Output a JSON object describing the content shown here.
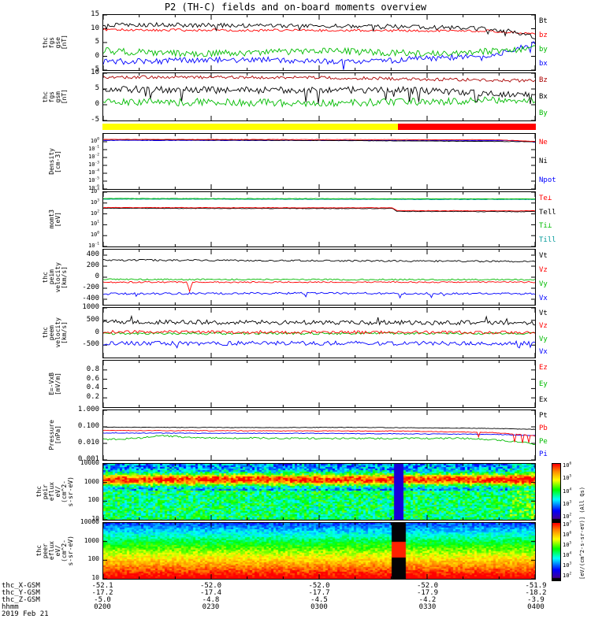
{
  "title": "P2 (TH-C) fields and on-board moments overview",
  "spectro_unit_label": "[eV/(cm^2-s-sr-eV)] (All Qs)",
  "time_axis": {
    "label": "hhmm",
    "date": "2019 Feb 21",
    "ticks": [
      "0200",
      "0230",
      "0300",
      "0330",
      "0400"
    ]
  },
  "position_rows": [
    {
      "label": "thc_X-GSM",
      "values": [
        "-52.1",
        "-52.0",
        "-52.0",
        "-52.0",
        "-51.9"
      ]
    },
    {
      "label": "thc_Y-GSM",
      "values": [
        "-17.2",
        "-17.4",
        "-17.7",
        "-17.9",
        "-18.2"
      ]
    },
    {
      "label": "thc_Z-GSM",
      "values": [
        "-5.0",
        "-4.8",
        "-4.5",
        "-4.2",
        "-3.9"
      ]
    }
  ],
  "quality_bar": {
    "segments": [
      {
        "color": "#ffff00",
        "from": 0,
        "to": 0.682
      },
      {
        "color": "#ff0000",
        "from": 0.682,
        "to": 1
      }
    ]
  },
  "chart_data": [
    {
      "id": "fgs_gse",
      "type": "line",
      "ylabel_lines": [
        "thc",
        "fgs",
        "gse",
        "[nT]"
      ],
      "yscale": "linear",
      "ylim": [
        -5,
        15
      ],
      "tick_font": 9,
      "yticks": [
        [
          15,
          "15"
        ],
        [
          10,
          "10"
        ],
        [
          5,
          "5"
        ],
        [
          0,
          "0"
        ],
        [
          -5,
          "-5"
        ]
      ],
      "legend": [
        [
          "Bt",
          "#000000"
        ],
        [
          "bz",
          "#ff0000"
        ],
        [
          "by",
          "#00bb00"
        ],
        [
          "bx",
          "#0000ff"
        ]
      ],
      "series": [
        {
          "name": "Bt",
          "color": "#000000",
          "points": [
            [
              0,
              11.5
            ],
            [
              0.3,
              11.2
            ],
            [
              0.6,
              11.0
            ],
            [
              0.85,
              10.3
            ],
            [
              0.95,
              9.0
            ],
            [
              1,
              7.0
            ]
          ],
          "noise": 0.8,
          "spikes": {
            "prob": 0.02,
            "amp": -2.5
          }
        },
        {
          "name": "bz",
          "color": "#ff0000",
          "points": [
            [
              0,
              9.6
            ],
            [
              0.5,
              9.4
            ],
            [
              0.9,
              9.2
            ],
            [
              1,
              8.0
            ]
          ],
          "noise": 0.45
        },
        {
          "name": "by",
          "color": "#00bb00",
          "points": [
            [
              0,
              2.0
            ],
            [
              0.2,
              0.8
            ],
            [
              0.5,
              2.0
            ],
            [
              0.8,
              0.8
            ],
            [
              1,
              3.0
            ]
          ],
          "noise": 1.2
        },
        {
          "name": "bx",
          "color": "#0000ff",
          "points": [
            [
              0,
              -2.0
            ],
            [
              0.35,
              -1.2
            ],
            [
              0.6,
              -2.0
            ],
            [
              0.9,
              0.5
            ],
            [
              1,
              4.5
            ]
          ],
          "noise": 1.1,
          "spikes": {
            "prob": 0.012,
            "amp": -3
          }
        }
      ]
    },
    {
      "id": "fgs_gsm",
      "type": "line",
      "ylabel_lines": [
        "thc",
        "fgs",
        "gsm",
        "[nT]"
      ],
      "yscale": "linear",
      "ylim": [
        -5,
        10
      ],
      "tick_font": 9,
      "yticks": [
        [
          10,
          "10"
        ],
        [
          5,
          "5"
        ],
        [
          0,
          "0"
        ],
        [
          -5,
          "-5"
        ]
      ],
      "legend": [
        [
          "Bz",
          "#aa0000"
        ],
        [
          "Bx",
          "#000000"
        ],
        [
          "By",
          "#00bb00"
        ]
      ],
      "series": [
        {
          "name": "Bz",
          "color": "#aa0000",
          "points": [
            [
              0,
              8.8
            ],
            [
              0.5,
              8.6
            ],
            [
              1,
              7.6
            ]
          ],
          "noise": 0.5
        },
        {
          "name": "Bx",
          "color": "#000000",
          "points": [
            [
              0,
              5.0
            ],
            [
              0.3,
              4.6
            ],
            [
              0.7,
              4.6
            ],
            [
              1,
              3.2
            ]
          ],
          "noise": 1.1,
          "spikes": {
            "prob": 0.03,
            "amp": -4
          }
        },
        {
          "name": "By",
          "color": "#00bb00",
          "points": [
            [
              0,
              1.0
            ],
            [
              0.5,
              0.5
            ],
            [
              1,
              1.5
            ]
          ],
          "noise": 1.2
        }
      ]
    },
    {
      "id": "density",
      "type": "line",
      "ylabel_lines": [
        "Density",
        "[cm-3]"
      ],
      "yscale": "log",
      "ylim": [
        1e-06,
        10
      ],
      "tick_font": 7,
      "yticks": [
        [
          1,
          "10^0"
        ],
        [
          0.1,
          "10^-1"
        ],
        [
          0.01,
          "10^-2"
        ],
        [
          0.001,
          "10^-3"
        ],
        [
          0.0001,
          "10^-4"
        ],
        [
          1e-05,
          "10^-5"
        ],
        [
          1e-06,
          "10^-6"
        ]
      ],
      "legend": [
        [
          "Ne",
          "#ff0000"
        ],
        [
          "Ni",
          "#000000"
        ],
        [
          "Npot",
          "#0000ff"
        ]
      ],
      "series": [
        {
          "name": "Ne",
          "color": "#ff0000",
          "points": [
            [
              0,
              2.0
            ],
            [
              0.9,
              1.8
            ],
            [
              1,
              1.1
            ]
          ],
          "noise": 0.02
        },
        {
          "name": "Ni",
          "color": "#000000",
          "points": [
            [
              0,
              1.9
            ],
            [
              1,
              1.0
            ]
          ],
          "noise": 0.02
        },
        {
          "name": "Npot",
          "color": "#0000ff",
          "points": [
            [
              0,
              1.5
            ],
            [
              0.95,
              1.4
            ],
            [
              1,
              0.9
            ]
          ],
          "noise": 0.03
        }
      ]
    },
    {
      "id": "momt3",
      "type": "line",
      "ylabel_lines": [
        "momt3",
        "[eV]"
      ],
      "yscale": "log",
      "ylim": [
        0.1,
        10000
      ],
      "tick_font": 7,
      "yticks": [
        [
          10000,
          "10^4"
        ],
        [
          1000,
          "10^3"
        ],
        [
          100,
          "10^2"
        ],
        [
          10,
          "10^1"
        ],
        [
          1,
          "10^0"
        ],
        [
          0.1,
          "10^-1"
        ]
      ],
      "legend": [
        [
          "Te⊥",
          "#ff0000"
        ],
        [
          "Tell",
          "#000000"
        ],
        [
          "Ti⊥",
          "#00bb00"
        ],
        [
          "Till",
          "#009999"
        ]
      ],
      "series": [
        {
          "name": "Te⊥",
          "color": "#ff0000",
          "points": [
            [
              0,
              380
            ],
            [
              0.67,
              360
            ],
            [
              0.68,
              200
            ],
            [
              1,
              190
            ]
          ],
          "noise": 0.025
        },
        {
          "name": "Tell",
          "color": "#000000",
          "points": [
            [
              0,
              330
            ],
            [
              0.67,
              310
            ],
            [
              0.68,
              170
            ],
            [
              1,
              160
            ]
          ],
          "noise": 0.025
        },
        {
          "name": "Ti⊥",
          "color": "#00bb00",
          "points": [
            [
              0,
              2600
            ],
            [
              1,
              2400
            ]
          ],
          "noise": 0.02
        },
        {
          "name": "Till",
          "color": "#009999",
          "points": [
            [
              0,
              2300
            ],
            [
              1,
              2100
            ]
          ],
          "noise": 0.02
        }
      ]
    },
    {
      "id": "peim_vel",
      "type": "line",
      "ylabel_lines": [
        "thc",
        "peim",
        "velocity",
        "[km/s]"
      ],
      "yscale": "linear",
      "ylim": [
        -500,
        500
      ],
      "tick_font": 9,
      "yticks": [
        [
          400,
          "400"
        ],
        [
          200,
          "200"
        ],
        [
          0,
          "0"
        ],
        [
          -200,
          "-200"
        ],
        [
          -400,
          "-400"
        ]
      ],
      "legend": [
        [
          "Vt",
          "#000000"
        ],
        [
          "Vz",
          "#ff0000"
        ],
        [
          "Vy",
          "#00bb00"
        ],
        [
          "Vx",
          "#0000ff"
        ]
      ],
      "series": [
        {
          "name": "Vt",
          "color": "#000000",
          "points": [
            [
              0,
              310
            ],
            [
              0.5,
              300
            ],
            [
              1,
              285
            ]
          ],
          "noise": 15
        },
        {
          "name": "Vz",
          "color": "#ff0000",
          "points": [
            [
              0,
              -90
            ],
            [
              1,
              -90
            ]
          ],
          "noise": 12,
          "events": [
            {
              "t": 0.2,
              "amp": -170,
              "width": 0.006
            }
          ]
        },
        {
          "name": "Vy",
          "color": "#00bb00",
          "points": [
            [
              0,
              -40
            ],
            [
              1,
              -45
            ]
          ],
          "noise": 12
        },
        {
          "name": "Vx",
          "color": "#0000ff",
          "points": [
            [
              0,
              -300
            ],
            [
              0.5,
              -290
            ],
            [
              1,
              -300
            ]
          ],
          "noise": 18,
          "spikes": {
            "prob": 0.015,
            "amp": -120
          }
        }
      ]
    },
    {
      "id": "peem_vel",
      "type": "line",
      "ylabel_lines": [
        "thc",
        "peem",
        "velocity",
        "[km/s]"
      ],
      "yscale": "linear",
      "ylim": [
        -1000,
        1000
      ],
      "tick_font": 9,
      "yticks": [
        [
          1000,
          "1000"
        ],
        [
          500,
          "500"
        ],
        [
          0,
          "0"
        ],
        [
          -500,
          "-500"
        ]
      ],
      "legend": [
        [
          "Vt",
          "#000000"
        ],
        [
          "Vz",
          "#ff0000"
        ],
        [
          "Vy",
          "#00bb00"
        ],
        [
          "Vx",
          "#0000ff"
        ]
      ],
      "series": [
        {
          "name": "Vt",
          "color": "#000000",
          "points": [
            [
              0,
              430
            ],
            [
              1,
              400
            ]
          ],
          "noise": 90,
          "spikes": {
            "prob": 0.02,
            "amp": 250
          }
        },
        {
          "name": "Vz",
          "color": "#ff0000",
          "points": [
            [
              0,
              30
            ],
            [
              1,
              10
            ]
          ],
          "noise": 65
        },
        {
          "name": "Vy",
          "color": "#00bb00",
          "points": [
            [
              0,
              -30
            ],
            [
              1,
              -30
            ]
          ],
          "noise": 45
        },
        {
          "name": "Vx",
          "color": "#0000ff",
          "points": [
            [
              0,
              -430
            ],
            [
              1,
              -420
            ]
          ],
          "noise": 85,
          "spikes": {
            "prob": 0.02,
            "amp": -250
          }
        }
      ]
    },
    {
      "id": "efield",
      "type": "line",
      "ylabel_lines": [
        "E=-VxB",
        "[mV/m]"
      ],
      "yscale": "linear",
      "ylim": [
        0,
        1
      ],
      "tick_font": 9,
      "yticks": [
        [
          0.8,
          "0.8"
        ],
        [
          0.6,
          "0.6"
        ],
        [
          0.4,
          "0.4"
        ],
        [
          0.2,
          "0.2"
        ]
      ],
      "legend": [
        [
          "Ez",
          "#ff0000"
        ],
        [
          "Ey",
          "#00bb00"
        ],
        [
          "Ex",
          "#000000"
        ]
      ],
      "series": []
    },
    {
      "id": "pressure",
      "type": "line",
      "ylabel_lines": [
        "Pressure",
        "[nPa]"
      ],
      "yscale": "log",
      "ylim": [
        0.001,
        1
      ],
      "tick_font": 9,
      "yticks": [
        [
          1,
          "1.000"
        ],
        [
          0.1,
          "0.100"
        ],
        [
          0.01,
          "0.010"
        ],
        [
          0.001,
          "0.001"
        ]
      ],
      "legend": [
        [
          "Pt",
          "#000000"
        ],
        [
          "Pb",
          "#ff0000"
        ],
        [
          "Pe",
          "#00bb00"
        ],
        [
          "Pi",
          "#0000ff"
        ]
      ],
      "series": [
        {
          "name": "Pt",
          "color": "#000000",
          "points": [
            [
              0,
              0.095
            ],
            [
              0.3,
              0.09
            ],
            [
              0.6,
              0.092
            ],
            [
              0.9,
              0.08
            ],
            [
              1,
              0.07
            ]
          ],
          "noise": 0.015
        },
        {
          "name": "Pb",
          "color": "#ff0000",
          "points": [
            [
              0,
              0.06
            ],
            [
              0.7,
              0.055
            ],
            [
              0.9,
              0.045
            ],
            [
              1,
              0.028
            ]
          ],
          "noise": 0.02,
          "spikes": {
            "prob": 0.1,
            "amp": -0.55,
            "from": 0.86
          }
        },
        {
          "name": "Pe",
          "color": "#00bb00",
          "points": [
            [
              0,
              0.017
            ],
            [
              0.08,
              0.02
            ],
            [
              0.13,
              0.03
            ],
            [
              0.2,
              0.022
            ],
            [
              0.5,
              0.02
            ],
            [
              0.85,
              0.02
            ],
            [
              0.95,
              0.013
            ],
            [
              1,
              0.009
            ]
          ],
          "noise": 0.05
        },
        {
          "name": "Pi",
          "color": "#0000ff",
          "points": [
            [
              0,
              0.042
            ],
            [
              0.5,
              0.04
            ],
            [
              0.9,
              0.035
            ],
            [
              1,
              0.03
            ]
          ],
          "noise": 0.02
        }
      ]
    },
    {
      "id": "peir_spec",
      "type": "spectrogram",
      "ylabel_lines": [
        "thc",
        "peir",
        "eflux",
        "eV/",
        "(cm^2-",
        "s-sr-eV)"
      ],
      "yscale": "log",
      "ylim": [
        10,
        10000
      ],
      "tick_font": 8,
      "yticks": [
        [
          10000,
          "10000"
        ],
        [
          1000,
          "1000"
        ],
        [
          100,
          "100"
        ],
        [
          10,
          "10"
        ]
      ],
      "colorbar": {
        "ticks": [
          "10^6",
          "10^5",
          "10^4",
          "10^3",
          "10^2"
        ]
      },
      "model": {
        "background": 0.3,
        "noise": 0.15,
        "bands": [
          {
            "center": 3.18,
            "sigma": 0.22,
            "amp": 0.68
          }
        ],
        "low_e": {
          "below": 2.6,
          "add": 0.18
        },
        "tboost": {
          "from": 0.94,
          "add": 0.08
        },
        "stripes": [
          {
            "from": 0.672,
            "to": 0.695,
            "value": 0.13
          }
        ]
      }
    },
    {
      "id": "peer_spec",
      "type": "spectrogram",
      "ylabel_lines": [
        "thc",
        "peer",
        "eflux",
        "eV/",
        "(cm^2-",
        "s-sr-eV)"
      ],
      "yscale": "log",
      "ylim": [
        10,
        10000
      ],
      "tick_font": 8,
      "yticks": [
        [
          10000,
          "10000"
        ],
        [
          1000,
          "1000"
        ],
        [
          100,
          "100"
        ],
        [
          10,
          "10"
        ]
      ],
      "colorbar": {
        "ticks": [
          "10^7",
          "10^6",
          "10^5",
          "10^4",
          "10^3",
          "10^2"
        ]
      },
      "model": {
        "background": 0,
        "noise": 0.07,
        "gradient": {
          "a": 1.32,
          "b": -0.27
        },
        "stripes": [
          {
            "from": 0.668,
            "to": 0.702,
            "value": 0
          }
        ],
        "blocks": [
          {
            "from": 0.668,
            "to": 0.702,
            "emin": 2.15,
            "emax": 3.05,
            "value": 0.97
          }
        ]
      }
    }
  ]
}
